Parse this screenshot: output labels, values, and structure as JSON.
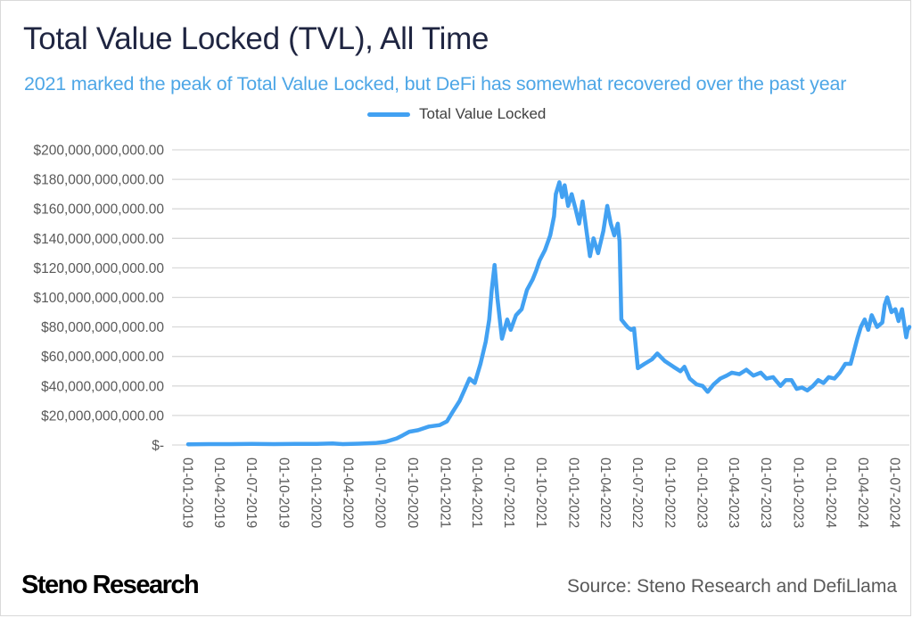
{
  "header": {
    "title": "Total Value Locked (TVL), All Time",
    "subtitle": "2021 marked the peak of Total Value Locked, but DeFi has somewhat recovered over the past year"
  },
  "footer": {
    "brand": "Steno Research",
    "source": "Source: Steno Research and DefiLlama"
  },
  "colors": {
    "line": "#42a1f2",
    "title": "#1f2541",
    "subtitle": "#4da6e6",
    "grid": "#d9d9d9",
    "tick_text": "#595959"
  },
  "chart_data": {
    "type": "line",
    "title": "Total Value Locked (TVL), All Time",
    "subtitle": "2021 marked the peak of Total Value Locked, but DeFi has somewhat recovered over the past year",
    "xlabel": "",
    "ylabel": "",
    "legend": {
      "position": "top-center",
      "entries": [
        "Total Value Locked"
      ]
    },
    "grid": true,
    "ylim": [
      0,
      200000000000
    ],
    "yticks": [
      0,
      20000000000,
      40000000000,
      60000000000,
      80000000000,
      100000000000,
      120000000000,
      140000000000,
      160000000000,
      180000000000,
      200000000000
    ],
    "ytick_labels": [
      "$-",
      "$20,000,000,000.00",
      "$40,000,000,000.00",
      "$60,000,000,000.00",
      "$80,000,000,000.00",
      "$100,000,000,000.00",
      "$120,000,000,000.00",
      "$140,000,000,000.00",
      "$160,000,000,000.00",
      "$180,000,000,000.00",
      "$200,000,000,000.00"
    ],
    "xlim": [
      "2019-01-01",
      "2024-08-10"
    ],
    "xtick_labels": [
      "01-01-2019",
      "01-04-2019",
      "01-07-2019",
      "01-10-2019",
      "01-01-2020",
      "01-04-2020",
      "01-07-2020",
      "01-10-2020",
      "01-01-2021",
      "01-04-2021",
      "01-07-2021",
      "01-10-2021",
      "01-01-2022",
      "01-04-2022",
      "01-07-2022",
      "01-10-2022",
      "01-01-2023",
      "01-04-2023",
      "01-07-2023",
      "01-10-2023",
      "01-01-2024",
      "01-04-2024",
      "01-07-2024"
    ],
    "xtick_dates": [
      "2019-01-01",
      "2019-04-01",
      "2019-07-01",
      "2019-10-01",
      "2020-01-01",
      "2020-04-01",
      "2020-07-01",
      "2020-10-01",
      "2021-01-01",
      "2021-04-01",
      "2021-07-01",
      "2021-10-01",
      "2022-01-01",
      "2022-04-01",
      "2022-07-01",
      "2022-10-01",
      "2023-01-01",
      "2023-04-01",
      "2023-07-01",
      "2023-10-01",
      "2024-01-01",
      "2024-04-01",
      "2024-07-01"
    ],
    "series": [
      {
        "name": "Total Value Locked",
        "unit": "USD billions",
        "x": [
          "2019-01-01",
          "2019-03-01",
          "2019-05-01",
          "2019-07-01",
          "2019-09-01",
          "2019-11-01",
          "2020-01-01",
          "2020-02-15",
          "2020-03-15",
          "2020-05-01",
          "2020-06-15",
          "2020-07-15",
          "2020-08-15",
          "2020-09-01",
          "2020-09-20",
          "2020-10-15",
          "2020-11-15",
          "2020-12-15",
          "2021-01-05",
          "2021-01-20",
          "2021-02-10",
          "2021-02-25",
          "2021-03-10",
          "2021-03-25",
          "2021-04-10",
          "2021-04-25",
          "2021-05-05",
          "2021-05-12",
          "2021-05-20",
          "2021-05-28",
          "2021-06-10",
          "2021-06-25",
          "2021-07-05",
          "2021-07-20",
          "2021-08-05",
          "2021-08-20",
          "2021-09-05",
          "2021-09-15",
          "2021-09-25",
          "2021-10-10",
          "2021-10-25",
          "2021-11-05",
          "2021-11-10",
          "2021-11-20",
          "2021-11-28",
          "2021-12-05",
          "2021-12-15",
          "2021-12-25",
          "2022-01-05",
          "2022-01-15",
          "2022-01-25",
          "2022-02-05",
          "2022-02-15",
          "2022-02-25",
          "2022-03-10",
          "2022-03-25",
          "2022-04-05",
          "2022-04-15",
          "2022-04-25",
          "2022-05-05",
          "2022-05-10",
          "2022-05-15",
          "2022-06-01",
          "2022-06-12",
          "2022-06-20",
          "2022-07-01",
          "2022-07-20",
          "2022-08-10",
          "2022-08-25",
          "2022-09-15",
          "2022-10-10",
          "2022-10-30",
          "2022-11-10",
          "2022-11-25",
          "2022-12-15",
          "2023-01-01",
          "2023-01-15",
          "2023-02-01",
          "2023-02-20",
          "2023-03-10",
          "2023-03-25",
          "2023-04-15",
          "2023-05-05",
          "2023-05-25",
          "2023-06-15",
          "2023-07-01",
          "2023-07-20",
          "2023-08-10",
          "2023-08-25",
          "2023-09-10",
          "2023-09-25",
          "2023-10-10",
          "2023-10-25",
          "2023-11-10",
          "2023-11-25",
          "2023-12-10",
          "2023-12-25",
          "2024-01-10",
          "2024-01-25",
          "2024-02-10",
          "2024-02-25",
          "2024-03-05",
          "2024-03-15",
          "2024-03-25",
          "2024-04-05",
          "2024-04-15",
          "2024-04-25",
          "2024-05-10",
          "2024-05-25",
          "2024-06-01",
          "2024-06-08",
          "2024-06-20",
          "2024-07-01",
          "2024-07-10",
          "2024-07-20",
          "2024-08-01",
          "2024-08-05",
          "2024-08-10"
        ],
        "values": [
          0.5,
          0.6,
          0.6,
          0.7,
          0.6,
          0.7,
          0.8,
          1.0,
          0.6,
          0.9,
          1.3,
          2.2,
          4.5,
          6.5,
          9.0,
          10.0,
          12.5,
          13.5,
          16.0,
          22.0,
          30.0,
          38.0,
          45.0,
          42.0,
          55.0,
          70.0,
          85.0,
          105.0,
          122.0,
          100.0,
          72.0,
          85.0,
          78.0,
          88.0,
          92.0,
          105.0,
          112.0,
          118.0,
          125.0,
          132.0,
          142.0,
          155.0,
          170.0,
          178.0,
          168.0,
          176.0,
          162.0,
          170.0,
          160.0,
          150.0,
          165.0,
          145.0,
          128.0,
          140.0,
          130.0,
          145.0,
          162.0,
          150.0,
          142.0,
          150.0,
          138.0,
          85.0,
          80.0,
          78.0,
          79.0,
          52.0,
          55.0,
          58.0,
          62.0,
          57.0,
          53.0,
          50.0,
          53.0,
          45.0,
          41.0,
          40.0,
          36.0,
          41.0,
          45.0,
          47.0,
          49.0,
          48.0,
          51.0,
          47.0,
          49.0,
          45.0,
          46.0,
          40.0,
          44.0,
          44.0,
          38.0,
          39.0,
          37.0,
          40.0,
          44.0,
          42.0,
          46.0,
          45.0,
          49.0,
          55.0,
          55.0,
          63.0,
          72.0,
          80.0,
          85.0,
          78.0,
          88.0,
          80.0,
          83.0,
          95.0,
          100.0,
          90.0,
          92.0,
          84.0,
          92.0,
          73.0,
          78.0,
          80.0
        ]
      }
    ]
  }
}
